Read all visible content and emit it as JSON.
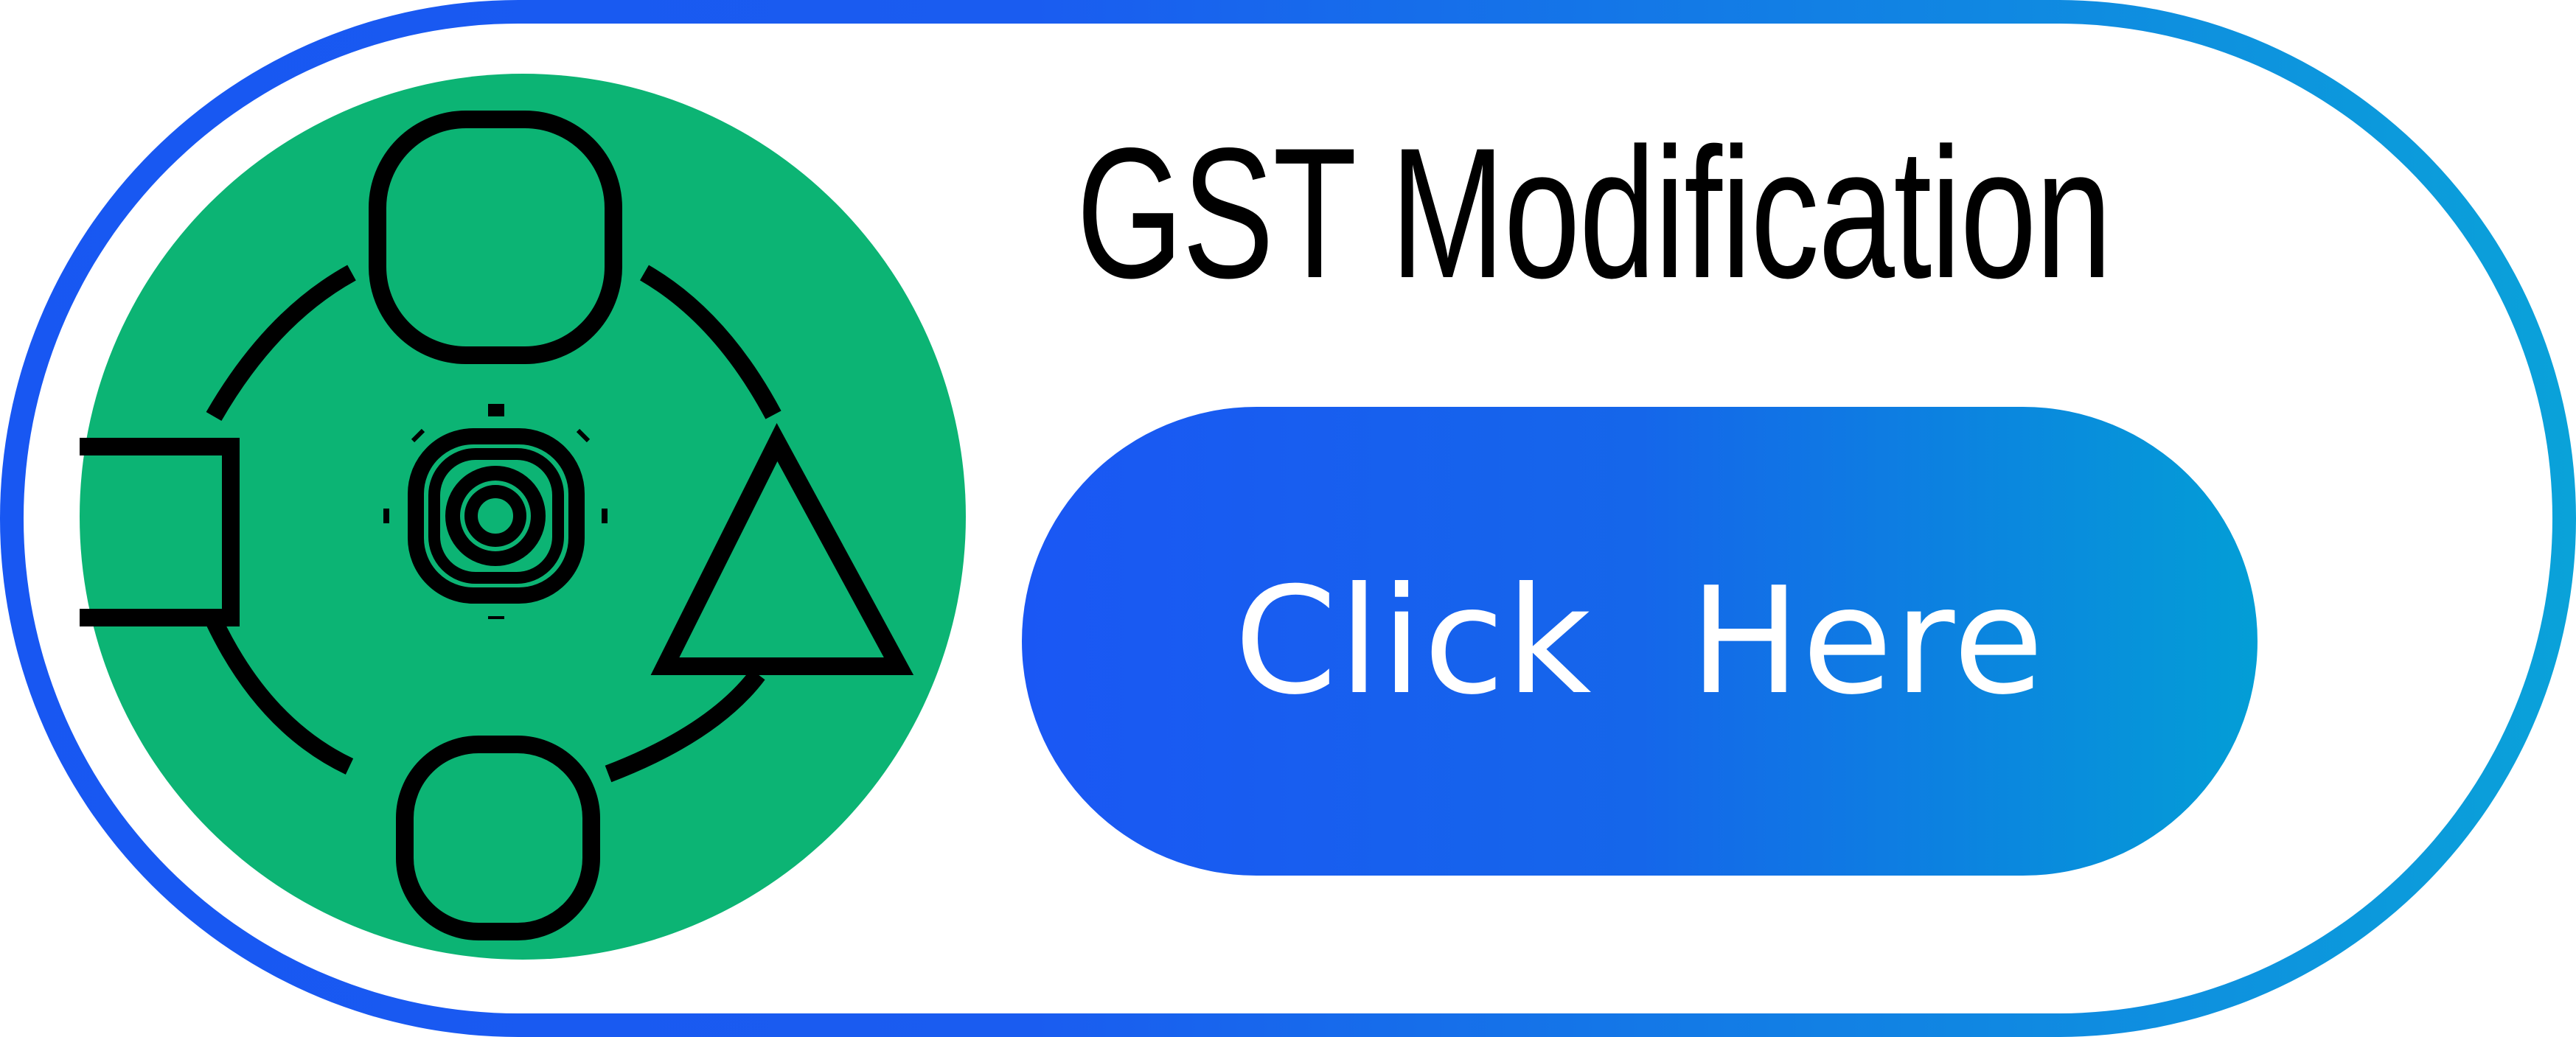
{
  "title": "GST Modification",
  "cta": {
    "label": "Click  Here"
  },
  "colors": {
    "frame_start": "#1857f2",
    "frame_end": "#0aa2d9",
    "icon_bg": "#0cb474",
    "icon_stroke": "#000000",
    "button_start": "#1a57f4",
    "button_end": "#039ed6",
    "button_text": "#ffffff"
  },
  "icons": {
    "main": "workflow-shapes-gear-icon"
  }
}
